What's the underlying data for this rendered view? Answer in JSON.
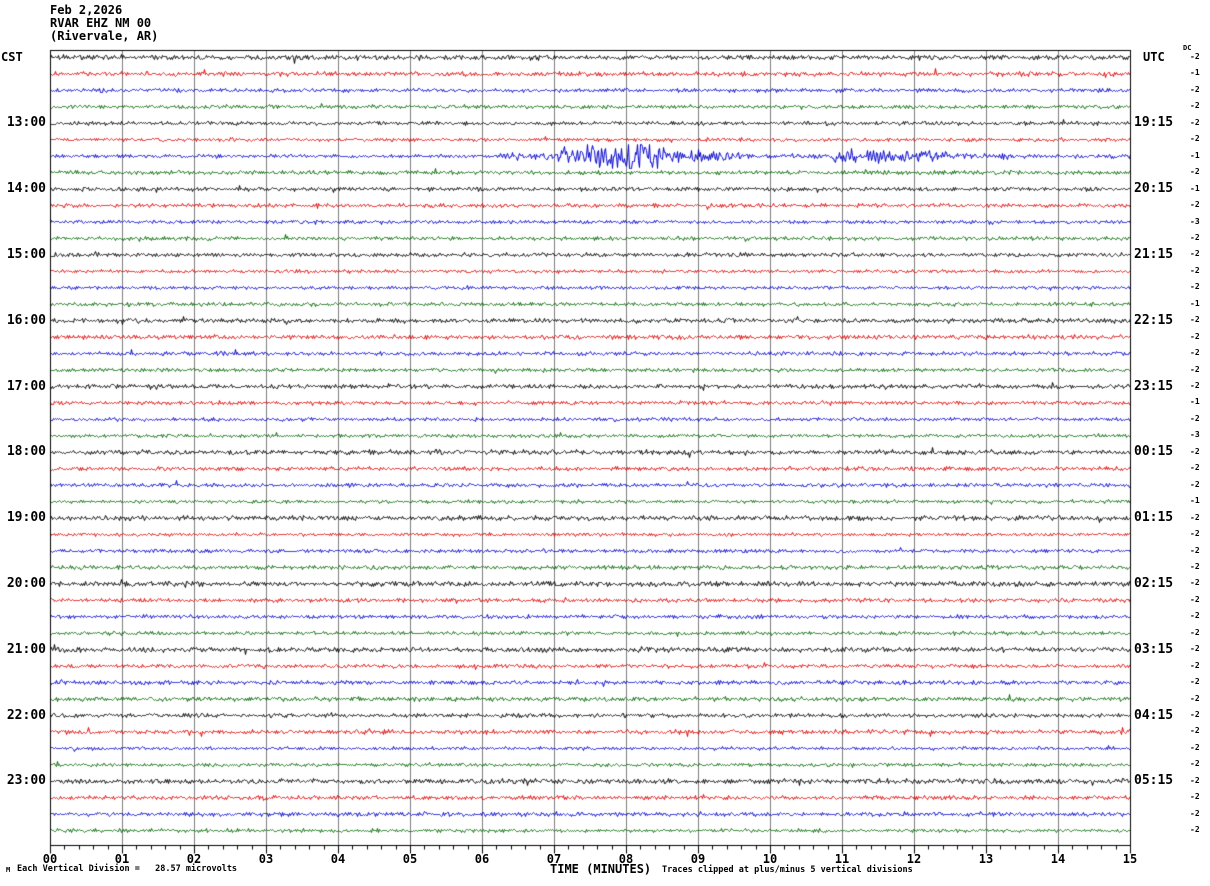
{
  "header": {
    "date": "Feb 2,2026",
    "station": "RVAR EHZ NM 00",
    "location": "(Rivervale, AR)"
  },
  "axis_labels": {
    "left": "CST",
    "right": "UTC",
    "dc": "DC"
  },
  "footer": {
    "m_mark": "M",
    "scale_note": "Each Vertical Division =   28.57 microvolts",
    "time_axis_title": "TIME (MINUTES)",
    "clip_note": "Traces clipped at plus/minus 5 vertical divisions"
  },
  "chart_data": {
    "type": "line",
    "subtype": "helicorder_seismogram",
    "title": "RVAR EHZ NM 00 (Rivervale, AR) — Feb 2,2026",
    "x_axis": {
      "label": "TIME (MINUTES)",
      "min_minutes": 0,
      "max_minutes": 15,
      "major_tick_every": 1,
      "minor_ticks_per_major": 5,
      "tick_labels": [
        "00",
        "01",
        "02",
        "03",
        "04",
        "05",
        "06",
        "07",
        "08",
        "09",
        "10",
        "11",
        "12",
        "13",
        "14",
        "15"
      ]
    },
    "y_axis_left": {
      "label": "CST",
      "hour_labels": [
        "13:00",
        "14:00",
        "15:00",
        "16:00",
        "17:00",
        "18:00",
        "19:00",
        "20:00",
        "21:00",
        "22:00",
        "23:00"
      ]
    },
    "y_axis_right": {
      "label": "UTC",
      "hour_labels": [
        "19:15",
        "20:15",
        "21:15",
        "22:15",
        "23:15",
        "00:15",
        "01:15",
        "02:15",
        "03:15",
        "04:15",
        "05:15"
      ]
    },
    "row_color_cycle": [
      "black",
      "red",
      "blue",
      "green"
    ],
    "colors": {
      "black": "#000000",
      "red": "#dd0000",
      "blue": "#0000cc",
      "green": "#006600",
      "grid": "#7d7d7d"
    },
    "grid": true,
    "clip_divisions": 5,
    "microvolts_per_division": 28.57,
    "rows": [
      {
        "color": "black",
        "cst": "",
        "utc": "",
        "dc": -2
      },
      {
        "color": "red",
        "cst": "",
        "utc": "",
        "dc": -1
      },
      {
        "color": "blue",
        "cst": "",
        "utc": "",
        "dc": -2
      },
      {
        "color": "green",
        "cst": "",
        "utc": "",
        "dc": -2
      },
      {
        "color": "black",
        "cst": "13:00",
        "utc": "19:15",
        "dc": -2
      },
      {
        "color": "red",
        "cst": "",
        "utc": "",
        "dc": -2
      },
      {
        "color": "blue",
        "cst": "",
        "utc": "",
        "dc": -1
      },
      {
        "color": "green",
        "cst": "",
        "utc": "",
        "dc": -2
      },
      {
        "color": "black",
        "cst": "14:00",
        "utc": "20:15",
        "dc": -1
      },
      {
        "color": "red",
        "cst": "",
        "utc": "",
        "dc": -2
      },
      {
        "color": "blue",
        "cst": "",
        "utc": "",
        "dc": -3
      },
      {
        "color": "green",
        "cst": "",
        "utc": "",
        "dc": -2
      },
      {
        "color": "black",
        "cst": "15:00",
        "utc": "21:15",
        "dc": -2
      },
      {
        "color": "red",
        "cst": "",
        "utc": "",
        "dc": -2
      },
      {
        "color": "blue",
        "cst": "",
        "utc": "",
        "dc": -2
      },
      {
        "color": "green",
        "cst": "",
        "utc": "",
        "dc": -1
      },
      {
        "color": "black",
        "cst": "16:00",
        "utc": "22:15",
        "dc": -2
      },
      {
        "color": "red",
        "cst": "",
        "utc": "",
        "dc": -2
      },
      {
        "color": "blue",
        "cst": "",
        "utc": "",
        "dc": -2
      },
      {
        "color": "green",
        "cst": "",
        "utc": "",
        "dc": -2
      },
      {
        "color": "black",
        "cst": "17:00",
        "utc": "23:15",
        "dc": -2
      },
      {
        "color": "red",
        "cst": "",
        "utc": "",
        "dc": -1
      },
      {
        "color": "blue",
        "cst": "",
        "utc": "",
        "dc": -2
      },
      {
        "color": "green",
        "cst": "",
        "utc": "",
        "dc": -3
      },
      {
        "color": "black",
        "cst": "18:00",
        "utc": "00:15",
        "dc": -2
      },
      {
        "color": "red",
        "cst": "",
        "utc": "",
        "dc": -2
      },
      {
        "color": "blue",
        "cst": "",
        "utc": "",
        "dc": -2
      },
      {
        "color": "green",
        "cst": "",
        "utc": "",
        "dc": -1
      },
      {
        "color": "black",
        "cst": "19:00",
        "utc": "01:15",
        "dc": -2
      },
      {
        "color": "red",
        "cst": "",
        "utc": "",
        "dc": -2
      },
      {
        "color": "blue",
        "cst": "",
        "utc": "",
        "dc": -2
      },
      {
        "color": "green",
        "cst": "",
        "utc": "",
        "dc": -2
      },
      {
        "color": "black",
        "cst": "20:00",
        "utc": "02:15",
        "dc": -2
      },
      {
        "color": "red",
        "cst": "",
        "utc": "",
        "dc": -2
      },
      {
        "color": "blue",
        "cst": "",
        "utc": "",
        "dc": -2
      },
      {
        "color": "green",
        "cst": "",
        "utc": "",
        "dc": -2
      },
      {
        "color": "black",
        "cst": "21:00",
        "utc": "03:15",
        "dc": -2
      },
      {
        "color": "red",
        "cst": "",
        "utc": "",
        "dc": -2
      },
      {
        "color": "blue",
        "cst": "",
        "utc": "",
        "dc": -2
      },
      {
        "color": "green",
        "cst": "",
        "utc": "",
        "dc": -2
      },
      {
        "color": "black",
        "cst": "22:00",
        "utc": "04:15",
        "dc": -2
      },
      {
        "color": "red",
        "cst": "",
        "utc": "",
        "dc": -2
      },
      {
        "color": "blue",
        "cst": "",
        "utc": "",
        "dc": -2
      },
      {
        "color": "green",
        "cst": "",
        "utc": "",
        "dc": -2
      },
      {
        "color": "black",
        "cst": "23:00",
        "utc": "05:15",
        "dc": -2
      },
      {
        "color": "red",
        "cst": "",
        "utc": "",
        "dc": -2
      },
      {
        "color": "blue",
        "cst": "",
        "utc": "",
        "dc": -2
      },
      {
        "color": "green",
        "cst": "",
        "utc": "",
        "dc": -2
      }
    ],
    "events": [
      {
        "row_index": 6,
        "description": "Seismic event bursts on blue trace (13:30-13:45 CST / 19:45-20:00 UTC)",
        "segments": [
          [
            6.25,
            7.0,
            2.2
          ],
          [
            7.0,
            7.25,
            6.0
          ],
          [
            7.25,
            8.55,
            8.5
          ],
          [
            8.55,
            9.1,
            4.5
          ],
          [
            9.1,
            9.6,
            2.8
          ],
          [
            9.6,
            10.85,
            1.4
          ],
          [
            10.85,
            11.9,
            4.2
          ],
          [
            11.9,
            12.45,
            3.2
          ],
          [
            12.45,
            13.35,
            1.9
          ],
          [
            14.7,
            15.0,
            1.6
          ]
        ]
      }
    ]
  }
}
